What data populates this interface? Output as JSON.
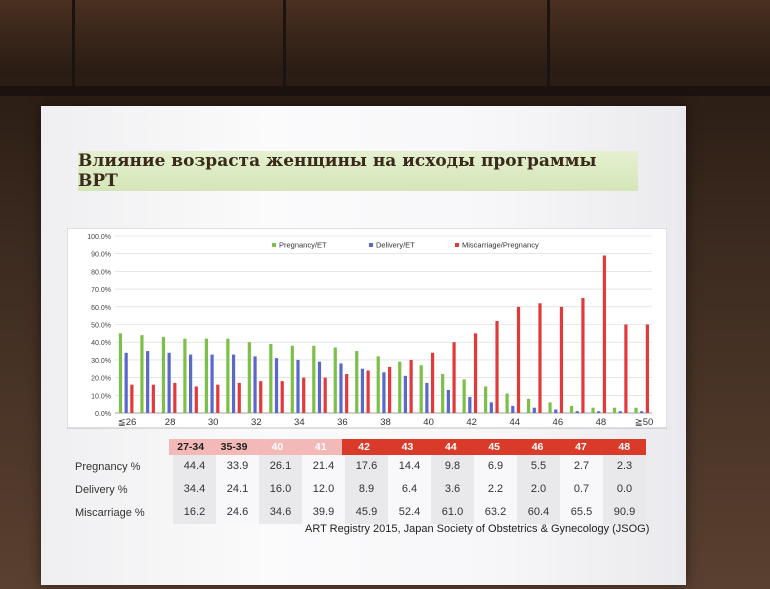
{
  "slide": {
    "title": "Влияние возраста  женщины на исходы программы ВРТ",
    "footer": "ART Registry 2015, Japan Society of Obstetrics & Gynecology (JSOG)"
  },
  "colors": {
    "pregnancy": "#7cc04a",
    "delivery": "#5a68c9",
    "miscarriage": "#e23a3a",
    "group_light": "#f3b8b8",
    "group_dark": "#d93a2a"
  },
  "chart_data": {
    "type": "bar",
    "title": "",
    "y_ticks": [
      "0.0%",
      "10.0%",
      "20.0%",
      "30.0%",
      "40.0%",
      "50.0%",
      "60.0%",
      "70.0%",
      "80.0%",
      "90.0%",
      "100.0%"
    ],
    "ylim": [
      0,
      100
    ],
    "x_ticks": [
      "≦26",
      "28",
      "30",
      "32",
      "34",
      "36",
      "38",
      "40",
      "42",
      "44",
      "46",
      "48",
      "≧50"
    ],
    "series": [
      {
        "name": "Pregnancy/ET",
        "color": "#7cc04a",
        "values": [
          45,
          44,
          43,
          42,
          42,
          42,
          40,
          39,
          38,
          38,
          37,
          35,
          32,
          29,
          27,
          22,
          19,
          15,
          11,
          8,
          6,
          4,
          3,
          3,
          3
        ]
      },
      {
        "name": "Delivery/ET",
        "color": "#5a68c9",
        "values": [
          34,
          35,
          34,
          33,
          33,
          33,
          32,
          31,
          30,
          29,
          28,
          25,
          23,
          21,
          17,
          13,
          9,
          6,
          4,
          3,
          2,
          1,
          1,
          1,
          1
        ]
      },
      {
        "name": "Miscarriage/Pregnancy",
        "color": "#e23a3a",
        "values": [
          16,
          16,
          17,
          15,
          16,
          17,
          18,
          18,
          20,
          20,
          22,
          24,
          26,
          30,
          34,
          40,
          45,
          52,
          60,
          62,
          60,
          65,
          89,
          50,
          50
        ]
      }
    ]
  },
  "table": {
    "groups": [
      "27-34",
      "35-39",
      "40",
      "41",
      "42",
      "43",
      "44",
      "45",
      "46",
      "47",
      "48"
    ],
    "rows": [
      {
        "label": "Pregnancy %",
        "values": [
          "44.4",
          "33.9",
          "26.1",
          "21.4",
          "17.6",
          "14.4",
          "9.8",
          "6.9",
          "5.5",
          "2.7",
          "2.3"
        ]
      },
      {
        "label": "Delivery %",
        "values": [
          "34.4",
          "24.1",
          "16.0",
          "12.0",
          "8.9",
          "6.4",
          "3.6",
          "2.2",
          "2.0",
          "0.7",
          "0.0"
        ]
      },
      {
        "label": "Miscarriage %",
        "values": [
          "16.2",
          "24.6",
          "34.6",
          "39.9",
          "45.9",
          "52.4",
          "61.0",
          "63.2",
          "60.4",
          "65.5",
          "90.9"
        ]
      }
    ]
  }
}
